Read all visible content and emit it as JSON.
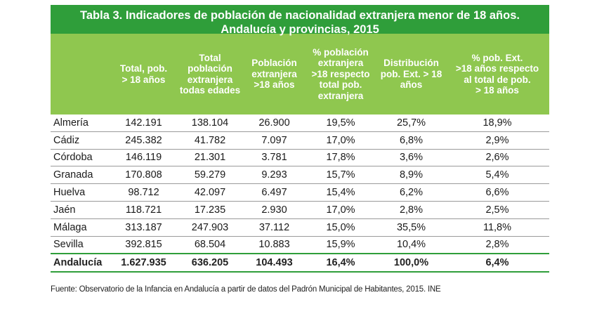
{
  "title": {
    "line1": "Tabla 3. Indicadores de población de nacionalidad extranjera menor de 18 años.",
    "line2": "Andalucía y provincias, 2015"
  },
  "columns": [
    "",
    "Total, pob.\n> 18 años",
    "Total\npoblación\nextranjera\ntodas edades",
    "Población\nextranjera\n>18 años",
    "% población\nextranjera\n>18 respecto\ntotal pob.\nextranjera",
    "Distribución\npob. Ext. > 18\naños",
    "% pob. Ext.\n>18 años respecto\nal total de pob.\n> 18 años"
  ],
  "rows": [
    [
      "Almería",
      "142.191",
      "138.104",
      "26.900",
      "19,5%",
      "25,7%",
      "18,9%"
    ],
    [
      "Cádiz",
      "245.382",
      "41.782",
      "7.097",
      "17,0%",
      "6,8%",
      "2,9%"
    ],
    [
      "Córdoba",
      "146.119",
      "21.301",
      "3.781",
      "17,8%",
      "3,6%",
      "2,6%"
    ],
    [
      "Granada",
      "170.808",
      "59.279",
      "9.293",
      "15,7%",
      "8,9%",
      "5,4%"
    ],
    [
      "Huelva",
      "98.712",
      "42.097",
      "6.497",
      "15,4%",
      "6,2%",
      "6,6%"
    ],
    [
      "Jaén",
      "118.721",
      "17.235",
      "2.930",
      "17,0%",
      "2,8%",
      "2,5%"
    ],
    [
      "Málaga",
      "313.187",
      "247.903",
      "37.112",
      "15,0%",
      "35,5%",
      "11,8%"
    ],
    [
      "Sevilla",
      "392.815",
      "68.504",
      "10.883",
      "15,9%",
      "10,4%",
      "2,8%"
    ]
  ],
  "total_row": [
    "Andalucía",
    "1.627.935",
    "636.205",
    "104.493",
    "16,4%",
    "100,0%",
    "6,4%"
  ],
  "source": "Fuente: Observatorio de la Infancia en Andalucía a partir de datos del Padrón Municipal de Habitantes, 2015. INE",
  "colors": {
    "title_bg": "#2f9e3a",
    "header_bg": "#8fc74f",
    "rule": "#2f9e3a"
  }
}
